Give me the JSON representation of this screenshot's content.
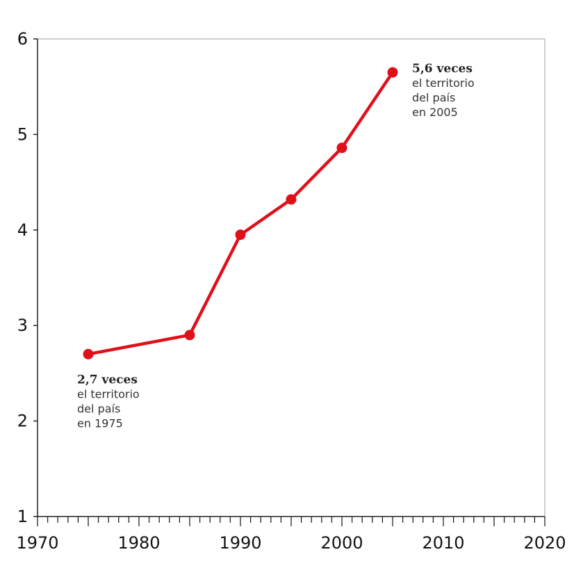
{
  "chart_data": {
    "type": "line",
    "title": "",
    "xlabel": "",
    "ylabel": "",
    "xlim": [
      1970,
      2020
    ],
    "ylim": [
      1,
      6
    ],
    "x_ticks": [
      1970,
      1980,
      1990,
      2000,
      2010,
      2020
    ],
    "y_ticks": [
      1,
      2,
      3,
      4,
      5,
      6
    ],
    "grid": false,
    "series": [
      {
        "color": "#e0101a",
        "points": [
          {
            "x": 1975,
            "y": 2.7
          },
          {
            "x": 1985,
            "y": 2.9
          },
          {
            "x": 1990,
            "y": 3.95
          },
          {
            "x": 1995,
            "y": 4.32
          },
          {
            "x": 2000,
            "y": 4.86
          },
          {
            "x": 2005,
            "y": 5.65
          }
        ]
      }
    ],
    "annotations": [
      {
        "anchor_x": 1975,
        "anchor_y": 2.7,
        "placement": "below",
        "bold": "2,7 veces",
        "lines": [
          "el territorio",
          "del país",
          "en 1975"
        ]
      },
      {
        "anchor_x": 2005,
        "anchor_y": 5.65,
        "placement": "right",
        "bold": "5,6 veces",
        "lines": [
          "el territorio",
          "del país",
          "en 2005"
        ]
      }
    ]
  }
}
